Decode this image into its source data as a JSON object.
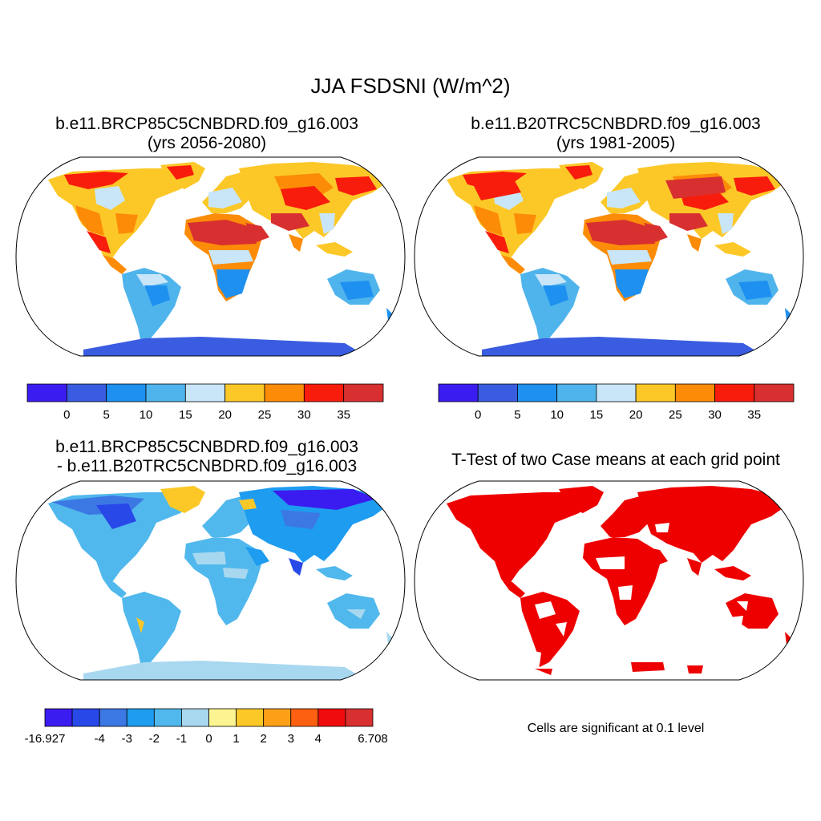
{
  "figure": {
    "title": "JJA FSDSNI (W/m^2)"
  },
  "panels": {
    "top_left": {
      "title_line1": "b.e11.BRCP85C5CNBDRD.f09_g16.003",
      "title_line2": "(yrs 2056-2080)"
    },
    "top_right": {
      "title_line1": "b.e11.B20TRC5CNBDRD.f09_g16.003",
      "title_line2": "(yrs 1981-2005)"
    },
    "bottom_left": {
      "title_line1": "b.e11.BRCP85C5CNBDRD.f09_g16.003",
      "title_line2": "- b.e11.B20TRC5CNBDRD.f09_g16.003"
    },
    "bottom_right": {
      "title": "T-Test of two Case means at each grid point",
      "note": "Cells are significant at 0.1 level",
      "significance_color": "#ee0000"
    }
  },
  "colorbars": {
    "absolute": {
      "labels": [
        "0",
        "5",
        "10",
        "15",
        "20",
        "25",
        "30",
        "35"
      ],
      "colors": [
        "#3b1cf0",
        "#3a5ce0",
        "#1e90f0",
        "#50b4ec",
        "#c8e6f8",
        "#fcc828",
        "#fc8c08",
        "#f81c0c",
        "#d83030"
      ]
    },
    "difference": {
      "labels": [
        "-16.927",
        "-4",
        "-3",
        "-2",
        "-1",
        "0",
        "1",
        "2",
        "3",
        "4",
        "6.708"
      ],
      "colors": [
        "#3b1cf0",
        "#2848e8",
        "#3c78e4",
        "#1e9cf0",
        "#50b8ec",
        "#a8d8f0",
        "#fcf490",
        "#fcc828",
        "#fca018",
        "#fc6010",
        "#f00c0c",
        "#d83030"
      ]
    }
  }
}
